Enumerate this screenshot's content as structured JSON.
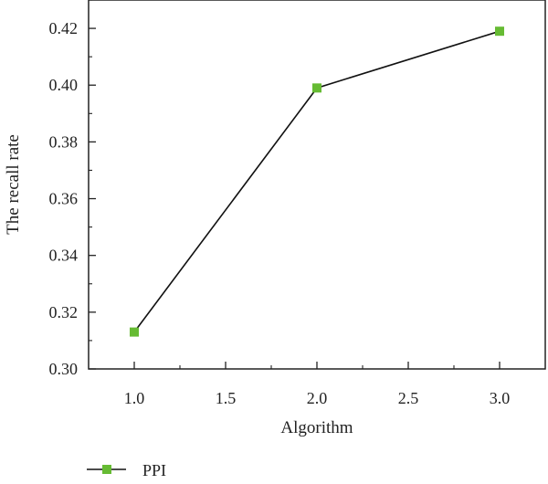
{
  "chart_data": {
    "type": "line",
    "title": "",
    "xlabel": "Algorithm",
    "ylabel": "The recall rate",
    "xlim": [
      0.75,
      3.25
    ],
    "ylim": [
      0.3,
      0.43
    ],
    "x_ticks": [
      1.0,
      1.5,
      2.0,
      2.5,
      3.0
    ],
    "x_tick_labels": [
      "1.0",
      "1.5",
      "2.0",
      "2.5",
      "3.0"
    ],
    "y_ticks": [
      0.3,
      0.32,
      0.34,
      0.36,
      0.38,
      0.4,
      0.42
    ],
    "y_tick_labels": [
      "0.30",
      "0.32",
      "0.34",
      "0.36",
      "0.38",
      "0.40",
      "0.42"
    ],
    "grid": false,
    "legend_position": "bottom-left",
    "series": [
      {
        "name": "PPI",
        "x": [
          1.0,
          2.0,
          3.0
        ],
        "y": [
          0.313,
          0.399,
          0.419
        ],
        "line_color": "#111111",
        "marker_color": "#66bb33",
        "marker": "square"
      }
    ]
  }
}
